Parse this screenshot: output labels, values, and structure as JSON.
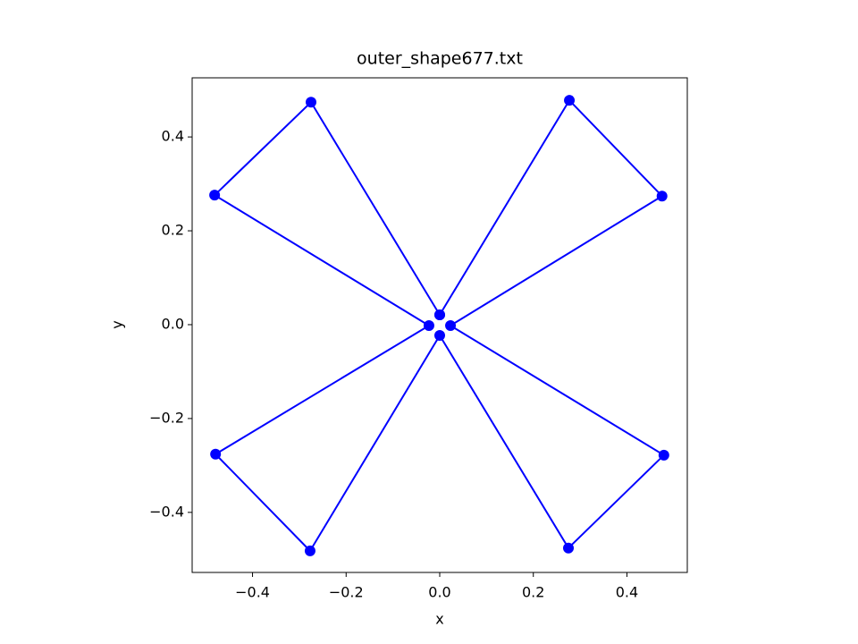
{
  "chart_data": {
    "type": "line",
    "title": "outer_shape677.txt",
    "xlabel": "x",
    "ylabel": "y",
    "x": [
      0.0,
      0.277,
      0.475,
      0.023,
      0.479,
      0.275,
      0.0,
      -0.277,
      -0.479,
      -0.023,
      -0.481,
      -0.275,
      0.0
    ],
    "series": [
      {
        "color": "#0000ff",
        "values": [
          0.021,
          0.478,
          0.274,
          -0.002,
          -0.278,
          -0.476,
          -0.023,
          -0.482,
          -0.276,
          -0.002,
          0.276,
          0.474,
          0.021
        ]
      }
    ],
    "markers": true,
    "xlim": [
      -0.529,
      0.529
    ],
    "ylim": [
      -0.528,
      0.526
    ],
    "xticks": [
      {
        "value": -0.4,
        "label": "−0.4"
      },
      {
        "value": -0.2,
        "label": "−0.2"
      },
      {
        "value": 0,
        "label": "0.0"
      },
      0.2,
      0.4
    ],
    "yticks": [
      {
        "value": -0.4,
        "label": "−0.4"
      },
      {
        "value": -0.2,
        "label": "−0.2"
      },
      {
        "value": 0,
        "label": "0.0"
      },
      0.2,
      0.4
    ],
    "grid": false
  }
}
